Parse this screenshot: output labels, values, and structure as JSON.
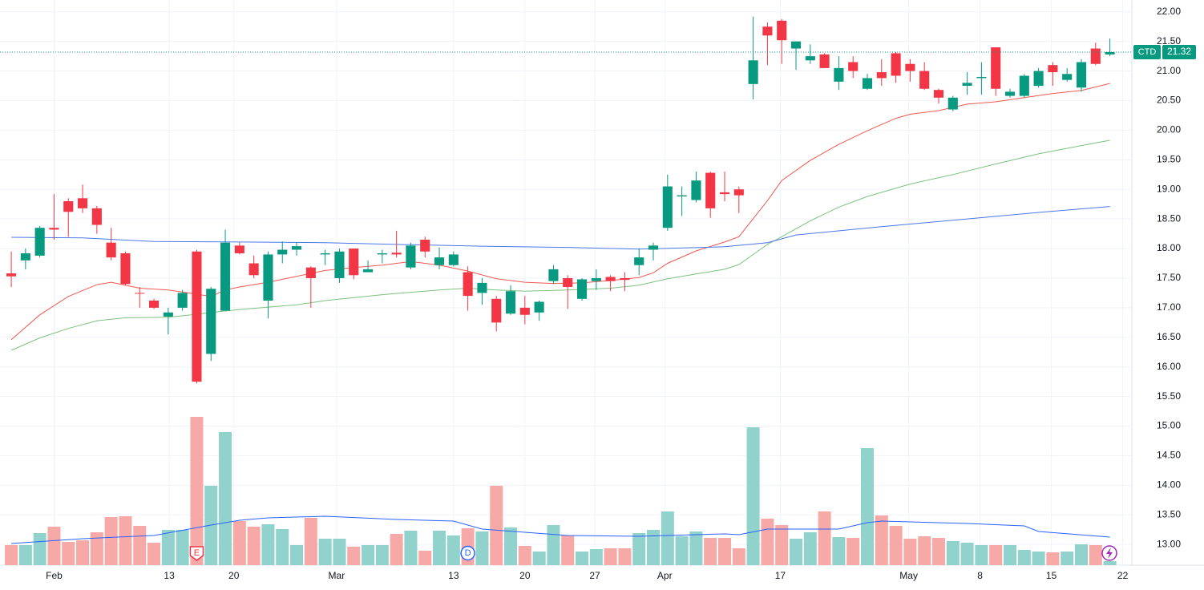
{
  "chart_data": {
    "type": "candlestick",
    "symbol": "CTD",
    "last_price": 21.32,
    "up_color": "#089981",
    "down_color": "#f23645",
    "volume_up_color": "#92d2cc",
    "volume_down_color": "#f7a9a7",
    "grid": true,
    "xlim": [
      -0.79,
      78.54
    ],
    "ylim": [
      12.65,
      22.2
    ],
    "xticks": [
      {
        "value": 3,
        "label": "Feb"
      },
      {
        "value": 11.07,
        "label": "13"
      },
      {
        "value": 15.6,
        "label": "20"
      },
      {
        "value": 22.8,
        "label": "Mar"
      },
      {
        "value": 31,
        "label": "13"
      },
      {
        "value": 36,
        "label": "20"
      },
      {
        "value": 40.9,
        "label": "27"
      },
      {
        "value": 45.8,
        "label": "Apr"
      },
      {
        "value": 53.9,
        "label": "17"
      },
      {
        "value": 62.9,
        "label": "May"
      },
      {
        "value": 67.9,
        "label": "8"
      },
      {
        "value": 72.9,
        "label": "15"
      },
      {
        "value": 77.9,
        "label": "22"
      }
    ],
    "yticks": [
      {
        "value": 13,
        "label": "13.00"
      },
      {
        "value": 13.5,
        "label": "13.50"
      },
      {
        "value": 14,
        "label": "14.00"
      },
      {
        "value": 14.5,
        "label": "14.50"
      },
      {
        "value": 15,
        "label": "15.00"
      },
      {
        "value": 15.5,
        "label": "15.50"
      },
      {
        "value": 16,
        "label": "16.00"
      },
      {
        "value": 16.5,
        "label": "16.50"
      },
      {
        "value": 17,
        "label": "17.00"
      },
      {
        "value": 17.5,
        "label": "17.50"
      },
      {
        "value": 18,
        "label": "18.00"
      },
      {
        "value": 18.5,
        "label": "18.50"
      },
      {
        "value": 19,
        "label": "19.00"
      },
      {
        "value": 19.5,
        "label": "19.50"
      },
      {
        "value": 20,
        "label": "20.00"
      },
      {
        "value": 20.5,
        "label": "20.50"
      },
      {
        "value": 21,
        "label": "21.00"
      },
      {
        "value": 21.5,
        "label": "21.50"
      },
      {
        "value": 22,
        "label": "22.00"
      }
    ],
    "open": [
      17.58,
      17.8,
      17.88,
      18.35,
      18.8,
      18.85,
      18.68,
      18.1,
      17.92,
      17.25,
      17.12,
      16.85,
      17.0,
      17.95,
      16.22,
      16.95,
      18.05,
      17.75,
      17.12,
      17.9,
      17.98,
      17.68,
      17.9,
      17.5,
      18.0,
      17.6,
      17.9,
      17.93,
      17.68,
      18.15,
      17.72,
      17.72,
      17.6,
      17.25,
      17.15,
      16.9,
      17.0,
      16.92,
      17.45,
      17.5,
      17.15,
      17.45,
      17.52,
      17.5,
      17.72,
      17.98,
      18.35,
      18.88,
      18.82,
      19.28,
      18.95,
      19.0,
      20.78,
      21.75,
      21.85,
      21.38,
      21.18,
      21.28,
      20.82,
      21.15,
      20.7,
      20.98,
      21.3,
      21.12,
      21.0,
      20.68,
      20.35,
      20.75,
      20.88,
      21.4,
      20.58,
      20.58,
      20.75,
      21.1,
      20.85,
      20.72,
      21.38,
      21.28
    ],
    "high": [
      17.95,
      18.0,
      18.38,
      18.92,
      18.85,
      19.08,
      18.72,
      18.35,
      17.95,
      17.35,
      17.15,
      17.0,
      17.3,
      17.98,
      17.35,
      18.32,
      18.1,
      17.88,
      17.95,
      18.12,
      18.1,
      17.7,
      17.98,
      18.0,
      18.0,
      17.8,
      17.98,
      18.3,
      18.1,
      18.2,
      18.02,
      17.95,
      17.7,
      17.5,
      17.2,
      17.38,
      17.2,
      17.12,
      17.72,
      17.55,
      17.5,
      17.65,
      17.55,
      17.6,
      18.0,
      18.1,
      19.25,
      19.05,
      19.3,
      19.3,
      19.3,
      19.05,
      21.92,
      21.82,
      21.88,
      21.5,
      21.45,
      21.3,
      21.25,
      21.25,
      20.95,
      21.2,
      21.32,
      21.2,
      21.15,
      20.7,
      20.58,
      20.98,
      21.15,
      21.4,
      20.7,
      20.95,
      21.05,
      21.15,
      21.05,
      21.2,
      21.48,
      21.55
    ],
    "low": [
      17.35,
      17.65,
      17.85,
      18.15,
      18.2,
      18.6,
      18.25,
      17.8,
      17.38,
      17.0,
      16.98,
      16.55,
      16.95,
      15.72,
      16.1,
      16.95,
      17.9,
      17.5,
      16.82,
      17.75,
      17.88,
      17.0,
      17.72,
      17.42,
      17.48,
      17.6,
      17.75,
      17.85,
      17.65,
      17.85,
      17.65,
      17.7,
      16.95,
      17.05,
      16.6,
      16.88,
      16.72,
      16.78,
      17.4,
      16.98,
      17.12,
      17.3,
      17.28,
      17.28,
      17.55,
      17.8,
      18.3,
      18.55,
      18.78,
      18.52,
      18.8,
      18.6,
      20.52,
      21.1,
      21.12,
      21.02,
      21.12,
      21.05,
      20.68,
      20.88,
      20.68,
      20.75,
      20.8,
      20.82,
      20.68,
      20.45,
      20.32,
      20.6,
      20.6,
      20.58,
      20.55,
      20.55,
      20.72,
      20.75,
      20.82,
      20.65,
      21.1,
      21.25
    ],
    "close": [
      17.53,
      17.92,
      18.35,
      18.32,
      18.62,
      18.68,
      18.4,
      17.85,
      17.4,
      17.24,
      17.0,
      16.92,
      17.25,
      15.75,
      17.32,
      18.1,
      17.92,
      17.55,
      17.9,
      17.98,
      18.04,
      17.5,
      17.92,
      17.95,
      17.55,
      17.65,
      17.92,
      17.9,
      18.05,
      17.95,
      17.85,
      17.9,
      17.2,
      17.42,
      16.75,
      17.28,
      16.88,
      17.1,
      17.65,
      17.35,
      17.48,
      17.5,
      17.45,
      17.47,
      17.85,
      18.05,
      19.05,
      18.9,
      19.15,
      18.68,
      18.92,
      18.9,
      21.18,
      21.6,
      21.52,
      21.5,
      21.25,
      21.05,
      21.05,
      21.0,
      20.88,
      20.88,
      20.92,
      21.0,
      20.7,
      20.55,
      20.55,
      20.8,
      20.9,
      20.7,
      20.65,
      20.92,
      21.0,
      20.98,
      20.95,
      21.15,
      21.12,
      21.32
    ],
    "volume": [
      250,
      250,
      400,
      480,
      290,
      310,
      410,
      600,
      610,
      490,
      280,
      440,
      440,
      1850,
      990,
      1660,
      550,
      480,
      510,
      450,
      250,
      590,
      330,
      330,
      230,
      250,
      250,
      390,
      430,
      180,
      430,
      370,
      460,
      420,
      990,
      470,
      240,
      170,
      500,
      370,
      170,
      200,
      210,
      210,
      400,
      440,
      670,
      360,
      420,
      340,
      340,
      210,
      1720,
      580,
      500,
      330,
      410,
      670,
      350,
      340,
      1460,
      620,
      490,
      330,
      360,
      340,
      300,
      280,
      250,
      250,
      250,
      190,
      170,
      160,
      170,
      260,
      250,
      50
    ],
    "moving_averages": [
      {
        "color": "#f0594f",
        "x": [
          0,
          2,
          4,
          6,
          7,
          9,
          11,
          13,
          14,
          15,
          16,
          18,
          20,
          22,
          24,
          26,
          28,
          30,
          32,
          34,
          36,
          38,
          40,
          42,
          44,
          45,
          46,
          48,
          50,
          51,
          53,
          54,
          56,
          58,
          60,
          62,
          63,
          65,
          67,
          69,
          71,
          73,
          75,
          77
        ],
        "values": [
          16.46,
          16.88,
          17.19,
          17.39,
          17.43,
          17.33,
          17.3,
          17.23,
          17.19,
          17.3,
          17.35,
          17.43,
          17.53,
          17.63,
          17.68,
          17.72,
          17.78,
          17.72,
          17.62,
          17.49,
          17.43,
          17.41,
          17.42,
          17.46,
          17.51,
          17.59,
          17.75,
          17.96,
          18.11,
          18.2,
          18.81,
          19.15,
          19.49,
          19.76,
          19.99,
          20.2,
          20.27,
          20.33,
          20.44,
          20.48,
          20.55,
          20.62,
          20.67,
          20.79
        ]
      },
      {
        "color": "#7cc27f",
        "x": [
          0,
          2,
          4,
          6,
          8,
          11,
          13,
          14,
          16,
          20,
          22,
          26,
          30,
          32,
          34,
          36,
          39,
          42,
          44,
          46,
          48,
          50,
          51,
          53,
          54,
          56,
          58,
          60,
          63,
          66,
          69,
          72,
          75,
          77
        ],
        "values": [
          16.28,
          16.49,
          16.65,
          16.78,
          16.83,
          16.84,
          16.89,
          16.92,
          16.97,
          17.05,
          17.12,
          17.22,
          17.3,
          17.33,
          17.3,
          17.28,
          17.3,
          17.33,
          17.38,
          17.49,
          17.57,
          17.65,
          17.73,
          18.07,
          18.2,
          18.47,
          18.7,
          18.88,
          19.09,
          19.25,
          19.43,
          19.6,
          19.74,
          19.83
        ]
      },
      {
        "color": "#4a78e8",
        "x": [
          0,
          5,
          10,
          16,
          22,
          27,
          33,
          39,
          44,
          50,
          53,
          55,
          61,
          67,
          72,
          77
        ],
        "values": [
          18.19,
          18.18,
          18.12,
          18.11,
          18.1,
          18.07,
          18.04,
          18.02,
          17.99,
          18.03,
          18.1,
          18.23,
          18.37,
          18.5,
          18.61,
          18.71
        ]
      }
    ],
    "volume_ma": {
      "color": "#2962ff",
      "x": [
        0,
        5,
        10,
        14,
        16,
        18,
        22,
        27,
        31,
        33,
        39,
        44,
        50,
        51,
        53,
        55,
        58,
        60,
        61,
        67,
        71,
        72,
        77
      ],
      "values": [
        270,
        330,
        370,
        500,
        560,
        590,
        610,
        570,
        550,
        450,
        370,
        360,
        390,
        380,
        450,
        450,
        450,
        530,
        550,
        520,
        490,
        420,
        350
      ]
    },
    "events": [
      {
        "x": 13,
        "label": "E",
        "color": "#f23645"
      },
      {
        "x": 32,
        "label": "D",
        "color": "#2962ff"
      }
    ]
  }
}
